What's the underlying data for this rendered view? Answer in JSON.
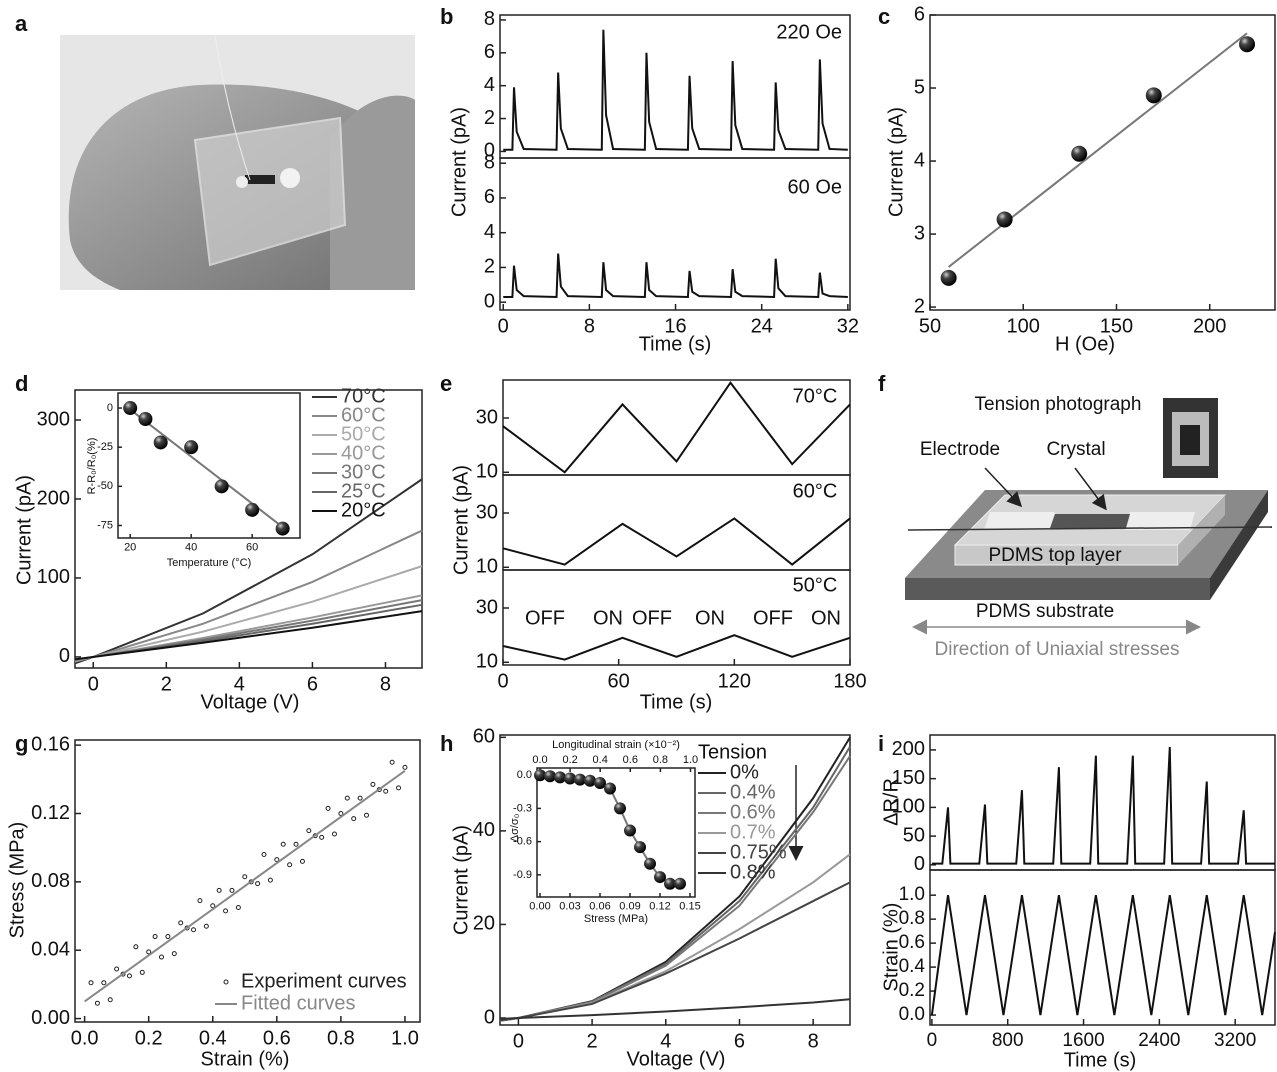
{
  "panel_labels": [
    "a",
    "b",
    "c",
    "d",
    "e",
    "f",
    "g",
    "h",
    "i"
  ],
  "diagram": {
    "tension_photograph": "Tension photograph",
    "electrode": "Electrode",
    "crystal": "Crystal",
    "top_layer": "PDMS top layer",
    "substrate": "PDMS substrate",
    "direction": "Direction of Uniaxial stresses"
  },
  "chart_data": [
    {
      "type": "line",
      "annotations": [
        "220 Oe"
      ],
      "xlim": [
        -0.3,
        32.2
      ],
      "ylim": [
        -0.4,
        8.3
      ],
      "yticks": [
        0,
        2,
        4,
        6,
        8
      ],
      "series": [
        {
          "color": "#111111",
          "x": [
            0,
            0.85,
            1,
            1.25,
            1.9,
            4.95,
            5.1,
            5.35,
            6.0,
            9.15,
            9.3,
            9.55,
            10.2,
            13.15,
            13.3,
            13.55,
            14.2,
            17.15,
            17.3,
            17.55,
            18.2,
            21.15,
            21.3,
            21.55,
            22.2,
            25.15,
            25.3,
            25.55,
            26.2,
            29.25,
            29.4,
            29.65,
            30.3,
            32
          ],
          "values": [
            0.1,
            0.1,
            3.9,
            1.2,
            0.15,
            0.1,
            4.8,
            1.4,
            0.15,
            0.1,
            7.4,
            2.2,
            0.15,
            0.1,
            6.0,
            1.8,
            0.15,
            0.1,
            4.6,
            1.4,
            0.15,
            0.1,
            5.5,
            1.6,
            0.15,
            0.1,
            4.2,
            1.3,
            0.15,
            0.1,
            5.6,
            1.7,
            0.15,
            0.1
          ]
        }
      ]
    },
    {
      "type": "line",
      "annotations": [
        "60 Oe"
      ],
      "xlabel": "Time (s)",
      "ylabel": "Current (pA)",
      "xlim": [
        -0.3,
        32.2
      ],
      "ylim": [
        -0.45,
        8.3
      ],
      "yticks": [
        0,
        2,
        4,
        6,
        8
      ],
      "xticks": [
        0,
        8,
        16,
        24,
        32
      ],
      "series": [
        {
          "color": "#111111",
          "x": [
            0,
            0.85,
            1,
            1.25,
            1.9,
            4.95,
            5.1,
            5.35,
            6.0,
            9.15,
            9.3,
            9.55,
            10.2,
            13.15,
            13.3,
            13.55,
            14.2,
            17.15,
            17.3,
            17.55,
            18.2,
            21.15,
            21.3,
            21.55,
            22.2,
            25.15,
            25.3,
            25.55,
            26.2,
            29.25,
            29.4,
            29.65,
            30.3,
            32
          ],
          "values": [
            0.3,
            0.3,
            2.1,
            0.7,
            0.35,
            0.3,
            2.8,
            0.9,
            0.35,
            0.3,
            2.3,
            0.7,
            0.35,
            0.3,
            2.3,
            0.7,
            0.35,
            0.3,
            1.8,
            0.6,
            0.35,
            0.3,
            1.9,
            0.6,
            0.35,
            0.3,
            2.5,
            0.8,
            0.35,
            0.3,
            1.7,
            0.5,
            0.35,
            0.3
          ]
        }
      ]
    },
    {
      "type": "scatter",
      "xlabel": "H (Oe)",
      "ylabel": "Current (pA)",
      "xlim": [
        50,
        235
      ],
      "ylim": [
        1.96,
        6
      ],
      "xticks": [
        50,
        100,
        150,
        200
      ],
      "yticks": [
        2,
        3,
        4,
        5,
        6
      ],
      "series": [
        {
          "mode": "line",
          "color": "#777777",
          "x": [
            60,
            220
          ],
          "values": [
            2.55,
            5.75
          ]
        },
        {
          "mode": "markers",
          "color": "#111111",
          "x": [
            60,
            90,
            130,
            170,
            220
          ],
          "values": [
            2.4,
            3.2,
            4.1,
            4.9,
            5.6
          ]
        }
      ]
    },
    {
      "type": "line",
      "xlabel": "Voltage (V)",
      "ylabel": "Current (pA)",
      "xlim": [
        -0.5,
        9
      ],
      "ylim": [
        -14,
        338
      ],
      "xticks": [
        0,
        2,
        4,
        6,
        8
      ],
      "yticks": [
        0,
        100,
        200,
        300
      ],
      "legend": "right",
      "x": [
        -0.5,
        0,
        3,
        6,
        9
      ],
      "series": [
        {
          "name": "70°C",
          "color": "#333333",
          "values": [
            -8,
            0,
            55,
            130,
            225
          ]
        },
        {
          "name": "60°C",
          "color": "#888888",
          "values": [
            -6,
            0,
            42,
            95,
            160
          ]
        },
        {
          "name": "50°C",
          "color": "#aaaaaa",
          "values": [
            -5,
            0,
            32,
            70,
            115
          ]
        },
        {
          "name": "40°C",
          "color": "#999999",
          "values": [
            -4,
            0,
            24,
            50,
            78
          ]
        },
        {
          "name": "30°C",
          "color": "#777777",
          "values": [
            -4,
            0,
            22,
            46,
            72
          ]
        },
        {
          "name": "25°C",
          "color": "#666666",
          "values": [
            -3,
            0,
            20,
            42,
            66
          ]
        },
        {
          "name": "20°C",
          "color": "#111111",
          "values": [
            -3,
            0,
            18,
            37,
            58
          ]
        }
      ]
    },
    {
      "type": "scatter",
      "xlabel": "Temperature (°C)",
      "ylabel": "R-R₀/R₀(%)",
      "xlim": [
        16,
        75.7
      ],
      "ylim": [
        -83,
        9.6
      ],
      "xticks": [
        20,
        40,
        60
      ],
      "yticks": [
        0,
        -25,
        -50,
        -75
      ],
      "series": [
        {
          "mode": "line",
          "color": "#777777",
          "x": [
            20,
            70
          ],
          "values": [
            -1,
            -76
          ]
        },
        {
          "mode": "markers",
          "color": "#111111",
          "x": [
            20,
            25,
            30,
            40,
            50,
            60,
            70
          ],
          "values": [
            0,
            -7,
            -22,
            -25,
            -50,
            -65,
            -77
          ]
        }
      ]
    },
    {
      "type": "line",
      "annotations": [
        "70°C"
      ],
      "xlim": [
        0,
        180
      ],
      "ylim": [
        9,
        44
      ],
      "yticks": [
        10,
        30
      ],
      "series": [
        {
          "color": "#111111",
          "x": [
            0,
            32,
            62,
            90,
            118,
            150,
            180
          ],
          "values": [
            27,
            10,
            35,
            14,
            43,
            13,
            35
          ]
        }
      ]
    },
    {
      "type": "line",
      "annotations": [
        "60°C"
      ],
      "ylabel": "Current (pA)",
      "xlim": [
        0,
        180
      ],
      "ylim": [
        9,
        44
      ],
      "yticks": [
        10,
        30
      ],
      "series": [
        {
          "color": "#111111",
          "x": [
            0,
            32,
            62,
            90,
            120,
            150,
            180
          ],
          "values": [
            17,
            11,
            26,
            14,
            28,
            11,
            28
          ]
        }
      ]
    },
    {
      "type": "line",
      "annotations": [
        "50°C",
        "OFF",
        "ON",
        "OFF",
        "ON",
        "OFF",
        "ON"
      ],
      "xlabel": "Time (s)",
      "xlim": [
        0,
        180
      ],
      "ylim": [
        9,
        44
      ],
      "yticks": [
        10,
        30
      ],
      "xticks": [
        0,
        60,
        120,
        180
      ],
      "series": [
        {
          "color": "#111111",
          "x": [
            0,
            32,
            62,
            90,
            120,
            150,
            180
          ],
          "values": [
            16,
            11,
            19,
            12,
            20,
            12,
            19
          ]
        }
      ]
    },
    {
      "type": "scatter",
      "xlabel": "Strain (%)",
      "ylabel": "Stress (MPa)",
      "xlim": [
        -0.03,
        1.047
      ],
      "ylim": [
        -0.002,
        0.163
      ],
      "legend": "lower right",
      "xticks": [
        {
          "value": 0,
          "label": "0.0"
        },
        0.2,
        0.4,
        0.6,
        0.8,
        {
          "value": 1,
          "label": "1.0"
        }
      ],
      "yticks": [
        {
          "value": 0,
          "label": "0.00"
        },
        0.04,
        0.08,
        0.12,
        0.16
      ],
      "series": [
        {
          "name": "Experiment curves",
          "mode": "markers",
          "color": "#222222",
          "x": [
            0.02,
            0.04,
            0.06,
            0.08,
            0.1,
            0.12,
            0.14,
            0.16,
            0.18,
            0.2,
            0.22,
            0.24,
            0.26,
            0.28,
            0.3,
            0.32,
            0.34,
            0.36,
            0.38,
            0.4,
            0.42,
            0.44,
            0.46,
            0.48,
            0.5,
            0.52,
            0.54,
            0.56,
            0.58,
            0.6,
            0.62,
            0.64,
            0.66,
            0.68,
            0.7,
            0.72,
            0.74,
            0.76,
            0.78,
            0.8,
            0.82,
            0.84,
            0.86,
            0.88,
            0.9,
            0.92,
            0.94,
            0.96,
            0.98,
            1.0
          ],
          "values": [
            0.021,
            0.009,
            0.021,
            0.011,
            0.029,
            0.026,
            0.025,
            0.042,
            0.027,
            0.039,
            0.048,
            0.036,
            0.048,
            0.038,
            0.056,
            0.053,
            0.052,
            0.069,
            0.054,
            0.066,
            0.075,
            0.063,
            0.075,
            0.065,
            0.083,
            0.08,
            0.079,
            0.096,
            0.081,
            0.093,
            0.102,
            0.09,
            0.102,
            0.092,
            0.11,
            0.107,
            0.106,
            0.123,
            0.108,
            0.12,
            0.129,
            0.117,
            0.129,
            0.119,
            0.137,
            0.134,
            0.133,
            0.15,
            0.135,
            0.147
          ]
        },
        {
          "name": "Fitted curves",
          "mode": "line",
          "color": "#888888",
          "x": [
            0,
            1.0
          ],
          "values": [
            0.01,
            0.145
          ]
        }
      ]
    },
    {
      "type": "line",
      "xlabel": "Voltage (V)",
      "ylabel": "Current (pA)",
      "xlim": [
        -0.5,
        9
      ],
      "ylim": [
        -1.5,
        60.5
      ],
      "xticks": [
        0,
        2,
        4,
        6,
        8
      ],
      "yticks": [
        0,
        20,
        40,
        60
      ],
      "legend": "right",
      "legend_title": "Tension",
      "x": [
        -0.5,
        0,
        2,
        4,
        6,
        8,
        9
      ],
      "series": [
        {
          "name": "0%",
          "color": "#222222",
          "values": [
            -0.6,
            0,
            3.6,
            12,
            26,
            47,
            60
          ]
        },
        {
          "name": "0.4%",
          "color": "#666666",
          "values": [
            -0.6,
            0,
            3.5,
            11.6,
            25,
            45,
            58
          ]
        },
        {
          "name": "0.6%",
          "color": "#777777",
          "values": [
            -0.6,
            0,
            3.4,
            11.2,
            24,
            44,
            56
          ]
        },
        {
          "name": "0.7%",
          "color": "#999999",
          "values": [
            -0.5,
            0,
            3.2,
            10,
            19,
            29,
            35
          ]
        },
        {
          "name": "0.75%",
          "color": "#444444",
          "values": [
            -0.5,
            0,
            3.0,
            9.5,
            17,
            25,
            29
          ]
        },
        {
          "name": "0.8%",
          "color": "#333333",
          "values": [
            -0.2,
            0,
            0.6,
            1.4,
            2.3,
            3.3,
            4
          ]
        }
      ]
    },
    {
      "type": "scatter",
      "xlabel": "Stress (MPa)",
      "x2label": "Longitudinal strain (×10⁻²)",
      "ylabel": "Δσ/σ₀",
      "xlim": [
        -0.003,
        0.155
      ],
      "x2lim": [
        -0.02,
        1.03
      ],
      "ylim": [
        -1.1,
        0.065
      ],
      "xticks": [
        {
          "value": 0,
          "label": "0.00"
        },
        0.03,
        0.06,
        0.09,
        0.12,
        0.15
      ],
      "x2ticks": [
        {
          "value": 0,
          "label": "0.0"
        },
        0.2,
        0.4,
        0.6,
        0.8,
        {
          "value": 1,
          "label": "1.0"
        }
      ],
      "yticks": [
        {
          "value": 0,
          "label": "0.0"
        },
        -0.3,
        -0.6,
        -0.9
      ],
      "x": [
        0,
        0.01,
        0.02,
        0.03,
        0.04,
        0.05,
        0.06,
        0.07,
        0.08,
        0.09,
        0.1,
        0.11,
        0.12,
        0.13,
        0.14
      ],
      "series": [
        {
          "mode": "line",
          "color": "#777777",
          "values": [
            0,
            -0.01,
            -0.02,
            -0.03,
            -0.04,
            -0.05,
            -0.07,
            -0.12,
            -0.3,
            -0.5,
            -0.65,
            -0.8,
            -0.92,
            -0.98,
            -0.98
          ]
        },
        {
          "mode": "markers",
          "color": "#111111",
          "values": [
            0,
            -0.01,
            -0.02,
            -0.03,
            -0.04,
            -0.05,
            -0.07,
            -0.12,
            -0.3,
            -0.5,
            -0.65,
            -0.8,
            -0.92,
            -0.98,
            -0.98
          ]
        }
      ]
    },
    {
      "type": "line",
      "ylabel": "ΔR/R",
      "xlim": [
        -20,
        3620
      ],
      "ylim": [
        -9,
        226
      ],
      "yticks": [
        0,
        50,
        100,
        150,
        200
      ],
      "series": [
        {
          "color": "#111111",
          "x": [
            0,
            110,
            170,
            195,
            500,
            560,
            585,
            890,
            950,
            975,
            1280,
            1340,
            1365,
            1670,
            1730,
            1755,
            2060,
            2120,
            2145,
            2450,
            2510,
            2535,
            2840,
            2900,
            2925,
            3230,
            3290,
            3315,
            3620
          ],
          "values": [
            2,
            2,
            100,
            2,
            2,
            105,
            2,
            2,
            130,
            2,
            2,
            170,
            2,
            2,
            190,
            2,
            2,
            190,
            2,
            2,
            205,
            2,
            2,
            145,
            2,
            2,
            95,
            2,
            2
          ]
        }
      ]
    },
    {
      "type": "line",
      "xlabel": "Time (s)",
      "ylabel": "Strain (%)",
      "xlim": [
        -20,
        3620
      ],
      "ylim": [
        -0.083,
        1.21
      ],
      "xticks": [
        0,
        800,
        1600,
        2400,
        3200
      ],
      "yticks": [
        {
          "value": 0,
          "label": "0.0"
        },
        0.2,
        0.4,
        0.6,
        0.8,
        {
          "value": 1,
          "label": "1.0"
        }
      ],
      "series": [
        {
          "color": "#111111",
          "x": [
            0,
            170,
            365,
            560,
            755,
            950,
            1145,
            1340,
            1535,
            1730,
            1925,
            2120,
            2315,
            2510,
            2705,
            2900,
            3095,
            3290,
            3485,
            3620
          ],
          "values": [
            0,
            1,
            0,
            1,
            0,
            1,
            0,
            1,
            0,
            1,
            0,
            1,
            0,
            1,
            0,
            1,
            0,
            1,
            0,
            0.69
          ]
        }
      ]
    }
  ]
}
